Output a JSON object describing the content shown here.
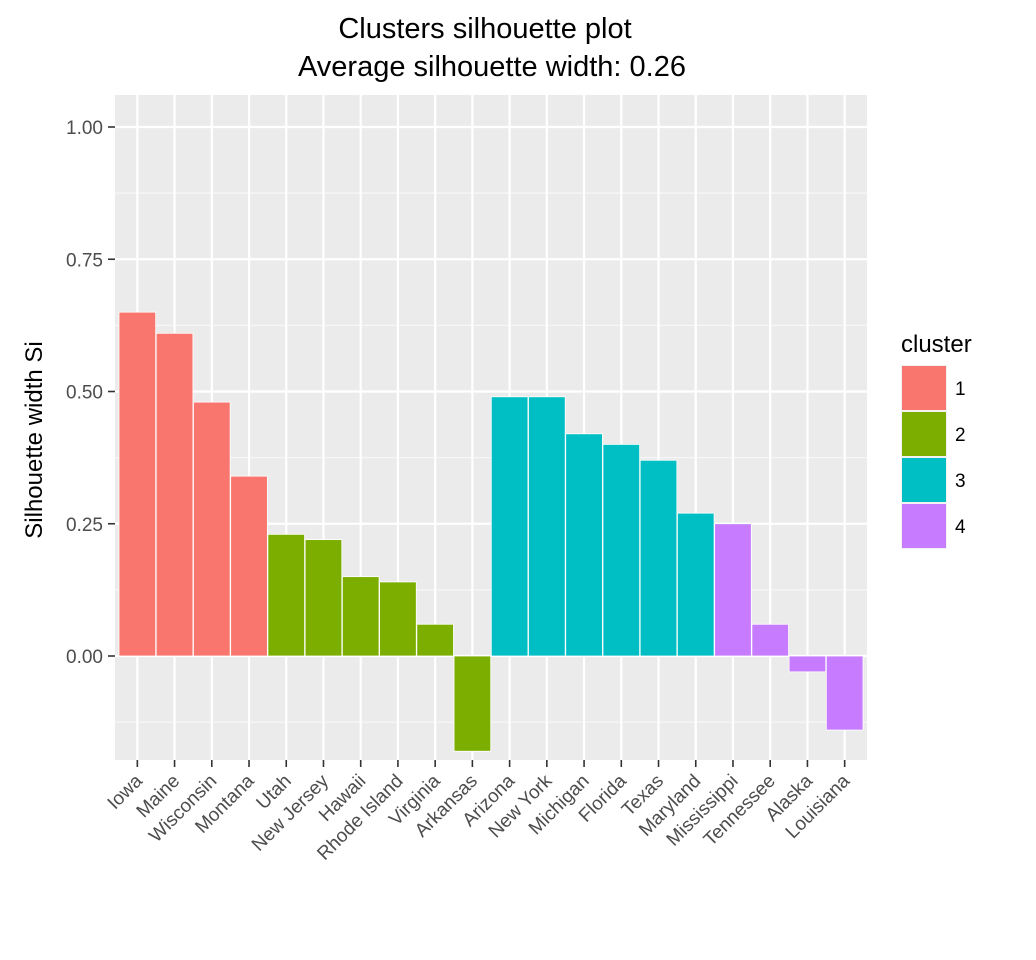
{
  "chart_data": {
    "type": "bar",
    "title": "Clusters silhouette plot",
    "subtitle": "Average silhouette width: 0.26",
    "xlabel": "",
    "ylabel": "Silhouette width Si",
    "ylim": [
      -0.19,
      1.06
    ],
    "yticks": [
      0.0,
      0.25,
      0.5,
      0.75,
      1.0
    ],
    "ytick_labels": [
      "0.00",
      "0.25",
      "0.50",
      "0.75",
      "1.00"
    ],
    "grid": true,
    "legend": {
      "title": "cluster",
      "position": "right",
      "entries": [
        {
          "label": "1",
          "color": "#F8766D"
        },
        {
          "label": "2",
          "color": "#7CAE00"
        },
        {
          "label": "3",
          "color": "#00BFC4"
        },
        {
          "label": "4",
          "color": "#C77CFF"
        }
      ]
    },
    "categories": [
      "Iowa",
      "Maine",
      "Wisconsin",
      "Montana",
      "Utah",
      "New Jersey",
      "Hawaii",
      "Rhode Island",
      "Virginia",
      "Arkansas",
      "Arizona",
      "New York",
      "Michigan",
      "Florida",
      "Texas",
      "Maryland",
      "Mississippi",
      "Tennessee",
      "Alaska",
      "Louisiana"
    ],
    "values": [
      0.65,
      0.61,
      0.48,
      0.34,
      0.23,
      0.22,
      0.15,
      0.14,
      0.06,
      -0.18,
      0.49,
      0.49,
      0.42,
      0.4,
      0.37,
      0.27,
      0.25,
      0.06,
      -0.03,
      -0.14
    ],
    "clusters": [
      "1",
      "1",
      "1",
      "1",
      "2",
      "2",
      "2",
      "2",
      "2",
      "2",
      "3",
      "3",
      "3",
      "3",
      "3",
      "3",
      "4",
      "4",
      "4",
      "4"
    ]
  }
}
